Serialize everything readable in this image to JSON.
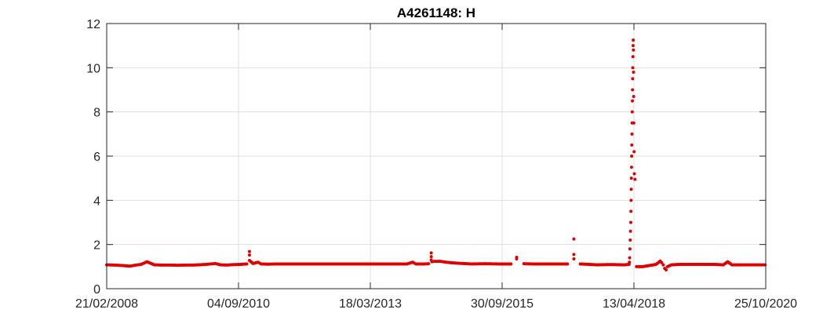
{
  "chart_data": {
    "type": "scatter",
    "title": "A4261148: H",
    "xlabel": "",
    "ylabel": "",
    "ylim": [
      0,
      12
    ],
    "yticks": [
      0,
      2,
      4,
      6,
      8,
      10,
      12
    ],
    "xlim": [
      "2008-02-21",
      "2020-10-25"
    ],
    "xtick_labels": [
      "21/02/2008",
      "04/09/2010",
      "18/03/2013",
      "30/09/2015",
      "13/04/2018",
      "25/10/2020"
    ],
    "xtick_dates": [
      "2008-02-21",
      "2010-09-04",
      "2013-03-18",
      "2015-09-30",
      "2018-04-13",
      "2020-10-25"
    ],
    "grid": true,
    "colors": {
      "series": "#e00000",
      "grid": "#dfdfdf",
      "axis": "#262626"
    },
    "series": [
      {
        "x": [
          "2008-02-21",
          "2008-04-15",
          "2008-06-10",
          "2008-08-01",
          "2008-09-25",
          "2008-10-20",
          "2008-11-30",
          "2009-01-20",
          "2009-03-15",
          "2009-05-10",
          "2009-07-05",
          "2009-09-01",
          "2009-10-25",
          "2010-01-20",
          "2010-02-20",
          "2010-03-25",
          "2010-05-01",
          "2010-06-15",
          "2010-08-01",
          "2010-09-20",
          "2010-11-01",
          "2010-11-20",
          "2010-11-20",
          "2010-11-20",
          "2010-12-15",
          "2011-01-20",
          "2011-02-10",
          "2011-04-01",
          "2011-06-01",
          "2011-08-01",
          "2011-10-01",
          "2011-12-01",
          "2012-02-01",
          "2012-04-01",
          "2012-06-01",
          "2012-08-01",
          "2012-10-01",
          "2012-12-01",
          "2013-02-01",
          "2013-04-01",
          "2013-06-01",
          "2013-08-01",
          "2013-10-01",
          "2013-12-01",
          "2014-01-10",
          "2014-02-01",
          "2014-04-01",
          "2014-05-01",
          "2014-05-20",
          "2014-05-20",
          "2014-05-20",
          "2014-05-25",
          "2014-06-10",
          "2014-07-20",
          "2014-09-01",
          "2014-10-15",
          "2014-12-01",
          "2015-03-01",
          "2015-06-01",
          "2015-09-01",
          "2015-12-01",
          "2016-01-10",
          "2016-01-10",
          "2016-03-01",
          "2016-05-01",
          "2016-07-01",
          "2016-09-01",
          "2016-11-01",
          "2017-01-01",
          "2017-02-15",
          "2017-02-15",
          "2017-02-15",
          "2017-04-01",
          "2017-06-01",
          "2017-08-01",
          "2017-10-01",
          "2017-12-01",
          "2018-02-01",
          "2018-03-10",
          "2018-03-12",
          "2018-03-14",
          "2018-03-16",
          "2018-03-18",
          "2018-03-20",
          "2018-03-22",
          "2018-03-23",
          "2018-03-24",
          "2018-03-25",
          "2018-03-26",
          "2018-03-27",
          "2018-03-28",
          "2018-03-29",
          "2018-03-30",
          "2018-03-31",
          "2018-04-01",
          "2018-04-02",
          "2018-04-03",
          "2018-04-04",
          "2018-04-05",
          "2018-04-06",
          "2018-04-07",
          "2018-04-08",
          "2018-04-09",
          "2018-04-10",
          "2018-04-11",
          "2018-04-12",
          "2018-04-14",
          "2018-04-16",
          "2018-04-20",
          "2018-05-01",
          "2018-06-15",
          "2018-08-01",
          "2018-09-15",
          "2018-10-15",
          "2018-10-25",
          "2018-11-05",
          "2018-11-15",
          "2018-11-25",
          "2018-12-05",
          "2019-01-01",
          "2019-03-01",
          "2019-05-01",
          "2019-07-01",
          "2019-09-01",
          "2019-11-01",
          "2020-01-01",
          "2020-02-01",
          "2020-03-01",
          "2020-05-01",
          "2020-07-01",
          "2020-09-01",
          "2020-10-20"
        ],
        "y": [
          1.08,
          1.07,
          1.05,
          1.02,
          1.08,
          1.1,
          1.22,
          1.08,
          1.07,
          1.07,
          1.06,
          1.07,
          1.07,
          1.1,
          1.12,
          1.14,
          1.08,
          1.07,
          1.09,
          1.1,
          1.12,
          1.68,
          1.52,
          1.28,
          1.14,
          1.2,
          1.12,
          1.11,
          1.12,
          1.12,
          1.12,
          1.12,
          1.12,
          1.12,
          1.12,
          1.12,
          1.12,
          1.12,
          1.12,
          1.12,
          1.12,
          1.12,
          1.12,
          1.12,
          1.2,
          1.12,
          1.12,
          1.13,
          1.62,
          1.45,
          1.3,
          1.22,
          1.24,
          1.24,
          1.2,
          1.17,
          1.15,
          1.12,
          1.13,
          1.12,
          1.12,
          1.42,
          1.35,
          1.13,
          1.12,
          1.12,
          1.12,
          1.12,
          1.12,
          2.25,
          1.55,
          1.35,
          1.12,
          1.1,
          1.08,
          1.09,
          1.09,
          1.08,
          1.1,
          1.2,
          1.4,
          1.8,
          2.2,
          2.6,
          3.0,
          3.5,
          4.0,
          4.5,
          5.0,
          5.5,
          6.0,
          6.5,
          7.0,
          7.5,
          8.0,
          8.5,
          9.0,
          9.5,
          10.0,
          10.5,
          11.0,
          11.25,
          10.8,
          9.8,
          8.7,
          7.5,
          6.2,
          5.2,
          4.95,
          1.0,
          1.0,
          1.05,
          1.1,
          1.25,
          1.18,
          1.08,
          0.92,
          0.85,
          1.0,
          1.08,
          1.1,
          1.1,
          1.1,
          1.1,
          1.1,
          1.08,
          1.22,
          1.08,
          1.08,
          1.08,
          1.08,
          1.08
        ]
      }
    ]
  }
}
